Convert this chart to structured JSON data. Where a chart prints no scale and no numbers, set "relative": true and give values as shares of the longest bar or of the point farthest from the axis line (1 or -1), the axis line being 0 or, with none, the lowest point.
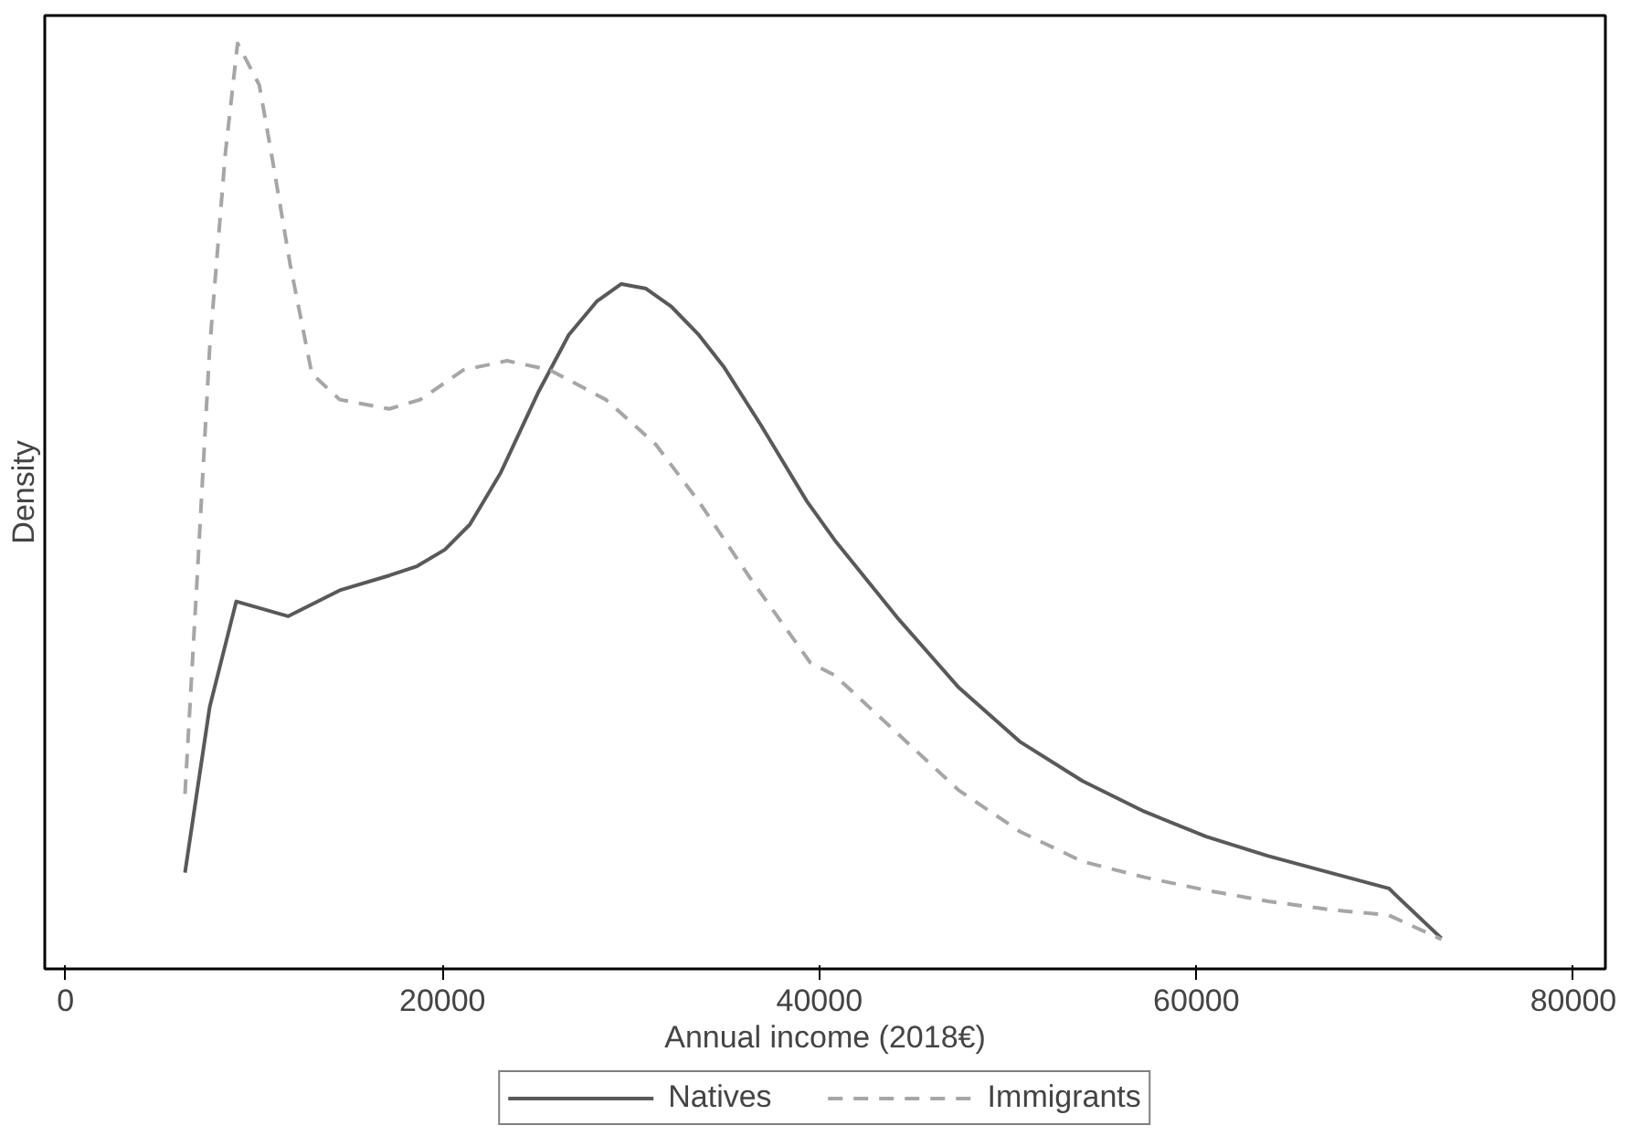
{
  "chart_data": {
    "type": "line",
    "xlabel": "Annual income (2018€)",
    "ylabel": "Density",
    "relative": true,
    "xlim": [
      -1100,
      81700
    ],
    "xticks": [
      0,
      20000,
      40000,
      60000,
      80000
    ],
    "grid": false,
    "legend": "bottom",
    "tick_labels": "x",
    "marker": "none",
    "series": [
      {
        "name": "Natives",
        "color": "#595959",
        "line_style": "solid",
        "x": [
          6340,
          7650,
          9060,
          11820,
          14550,
          17180,
          18650,
          20130,
          21450,
          23090,
          25060,
          26700,
          28180,
          29490,
          30800,
          32120,
          33600,
          34910,
          36880,
          39340,
          40820,
          44110,
          47390,
          50670,
          53960,
          57240,
          60520,
          63810,
          67090,
          70210,
          73000
        ],
        "values": [
          0.104,
          0.283,
          0.397,
          0.381,
          0.409,
          0.425,
          0.435,
          0.453,
          0.48,
          0.536,
          0.622,
          0.685,
          0.721,
          0.74,
          0.735,
          0.716,
          0.685,
          0.651,
          0.588,
          0.505,
          0.463,
          0.38,
          0.304,
          0.245,
          0.203,
          0.17,
          0.143,
          0.122,
          0.104,
          0.087,
          0.033
        ]
      },
      {
        "name": "Immigrants",
        "color": "#a6a6a6",
        "line_style": "dashed",
        "x": [
          6340,
          7000,
          7650,
          8470,
          9130,
          10280,
          10940,
          11920,
          13070,
          14550,
          17180,
          18820,
          21110,
          23420,
          25710,
          28670,
          31300,
          33600,
          36230,
          39510,
          40820,
          44110,
          47390,
          50670,
          53960,
          57240,
          60520,
          63810,
          67090,
          70210,
          73000
        ],
        "values": [
          0.189,
          0.428,
          0.671,
          0.879,
          1.0,
          0.955,
          0.879,
          0.761,
          0.643,
          0.615,
          0.605,
          0.615,
          0.647,
          0.657,
          0.647,
          0.615,
          0.567,
          0.505,
          0.425,
          0.331,
          0.317,
          0.255,
          0.193,
          0.148,
          0.116,
          0.099,
          0.085,
          0.073,
          0.064,
          0.058,
          0.032
        ]
      }
    ]
  }
}
